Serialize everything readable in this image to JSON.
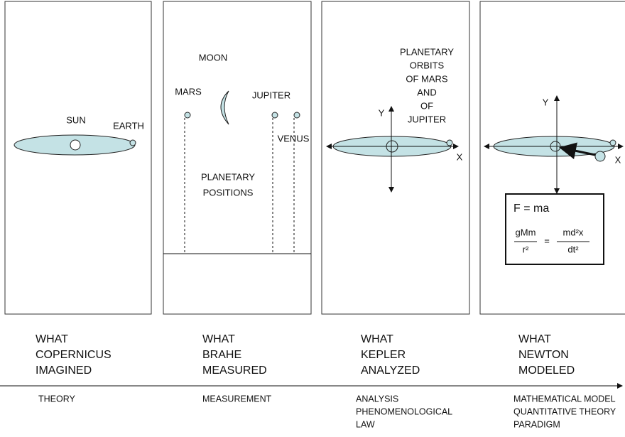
{
  "panels": [
    {
      "labels": [
        "SUN",
        "EARTH"
      ],
      "caption": [
        "WHAT",
        "COPERNICUS",
        "IMAGINED"
      ],
      "category": [
        "THEORY"
      ]
    },
    {
      "labels": [
        "MOON",
        "MARS",
        "JUPITER",
        "VENUS",
        "PLANETARY",
        "POSITIONS"
      ],
      "caption": [
        "WHAT",
        "BRAHE",
        "MEASURED"
      ],
      "category": [
        "MEASUREMENT"
      ]
    },
    {
      "labels": [
        "Y",
        "X",
        "PLANETARY",
        "ORBITS",
        "OF MARS",
        "AND",
        "OF",
        "JUPITER"
      ],
      "caption": [
        "WHAT",
        "KEPLER",
        "ANALYZED"
      ],
      "category": [
        "ANALYSIS",
        "PHENOMENOLOGICAL",
        "LAW"
      ]
    },
    {
      "labels": [
        "Y",
        "X"
      ],
      "formula": "F = ma",
      "equation": {
        "left_numerator": "gMm",
        "left_denominator": "r²",
        "equals": "=",
        "right_numerator": "md²x",
        "right_denominator": "dt²"
      },
      "caption": [
        "WHAT",
        "NEWTON",
        "MODELED"
      ],
      "category": [
        "MATHEMATICAL MODEL",
        "QUANTITATIVE THEORY",
        "PARADIGM"
      ]
    }
  ]
}
